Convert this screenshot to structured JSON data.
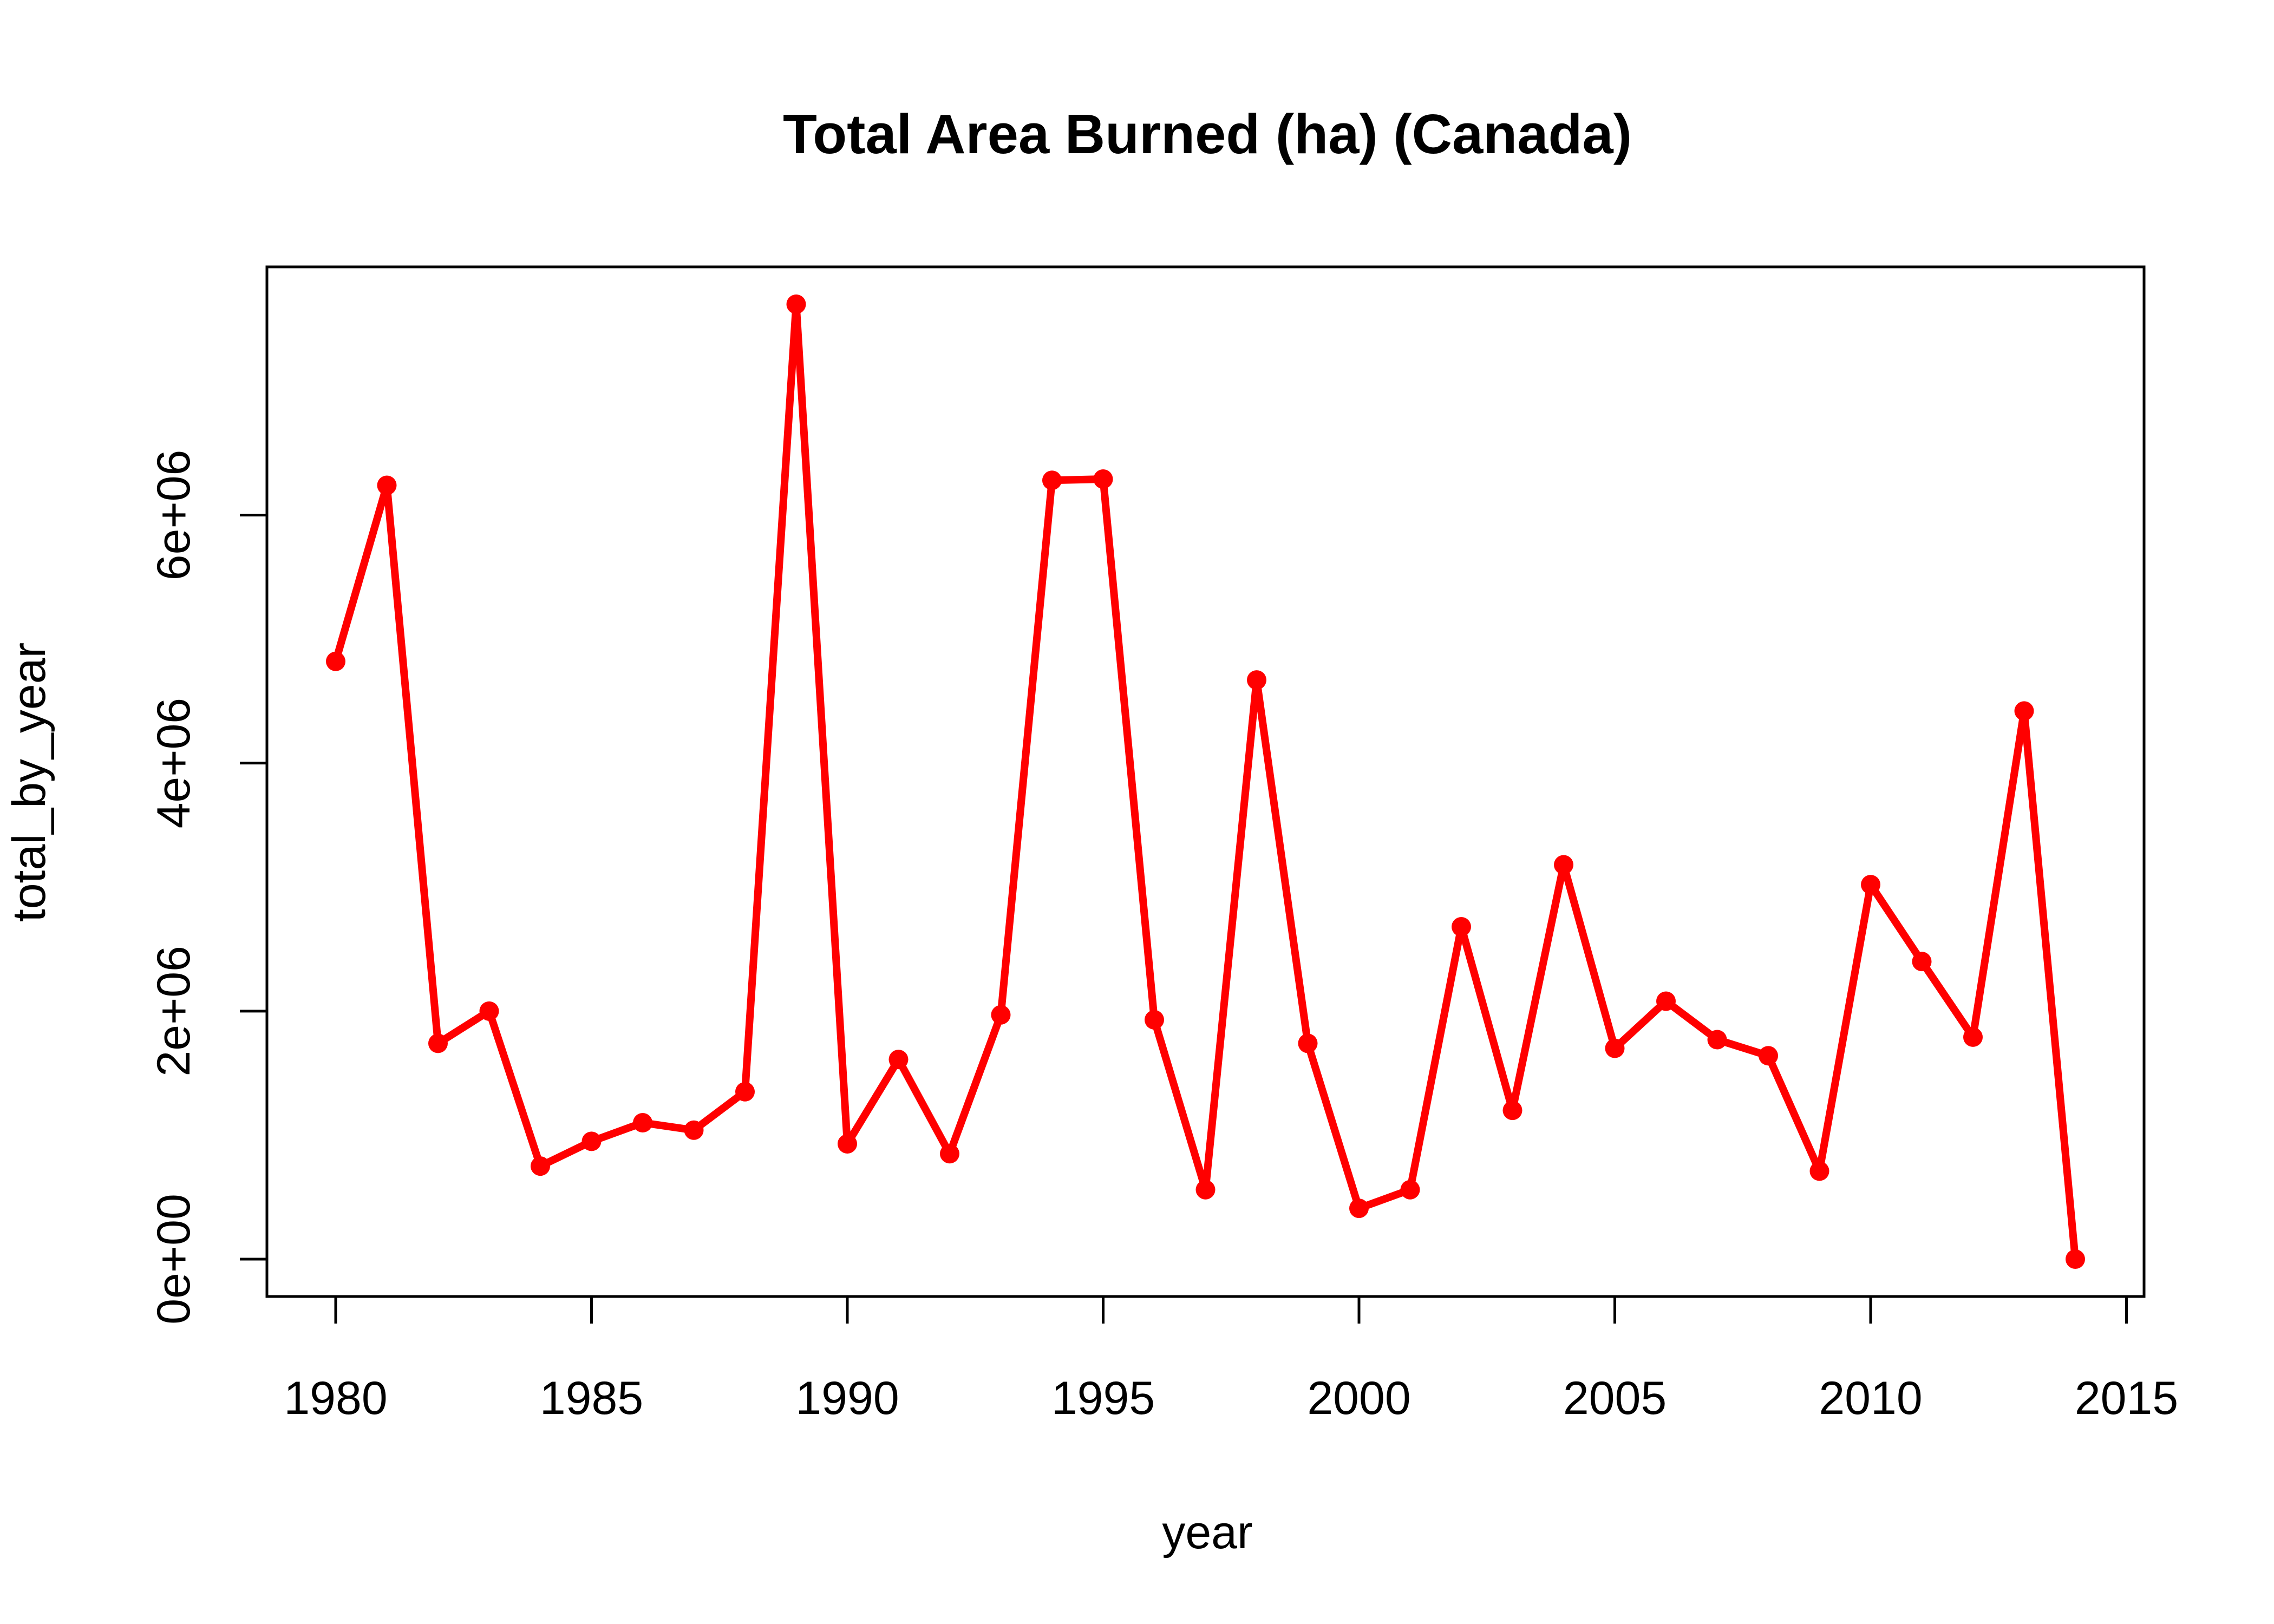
{
  "chart_data": {
    "type": "line",
    "title": "Total Area Burned (ha) (Canada)",
    "xlabel": "year",
    "ylabel": "total_by_year",
    "xlim": [
      1980,
      2014
    ],
    "ylim": [
      0,
      7700000
    ],
    "x_ticks": [
      1980,
      1985,
      1990,
      1995,
      2000,
      2005,
      2010,
      2015
    ],
    "x_tick_labels": [
      "1980",
      "1985",
      "1990",
      "1995",
      "2000",
      "2005",
      "2010",
      "2015"
    ],
    "y_ticks": [
      0,
      2000000,
      4000000,
      6000000
    ],
    "y_tick_labels": [
      "0e+00",
      "2e+06",
      "4e+06",
      "6e+06"
    ],
    "grid": false,
    "legend": "none",
    "color": "#ff0000",
    "series": [
      {
        "x": [
          1980,
          1981,
          1982,
          1983,
          1984,
          1985,
          1986,
          1987,
          1988,
          1989,
          1990,
          1991,
          1992,
          1993,
          1994,
          1995,
          1996,
          1997,
          1998,
          1999,
          2000,
          2001,
          2002,
          2003,
          2004,
          2005,
          2006,
          2007,
          2008,
          2009,
          2010,
          2011,
          2012,
          2013,
          2014
        ],
        "values": [
          4820000,
          6240000,
          1740000,
          2000000,
          750000,
          950000,
          1100000,
          1040000,
          1350000,
          7700000,
          930000,
          1610000,
          850000,
          1970000,
          6280000,
          6290000,
          1930000,
          560000,
          4670000,
          1740000,
          410000,
          560000,
          2680000,
          1200000,
          3180000,
          1700000,
          2080000,
          1770000,
          1640000,
          710000,
          3020000,
          2400000,
          1790000,
          4420000,
          0
        ]
      }
    ]
  }
}
